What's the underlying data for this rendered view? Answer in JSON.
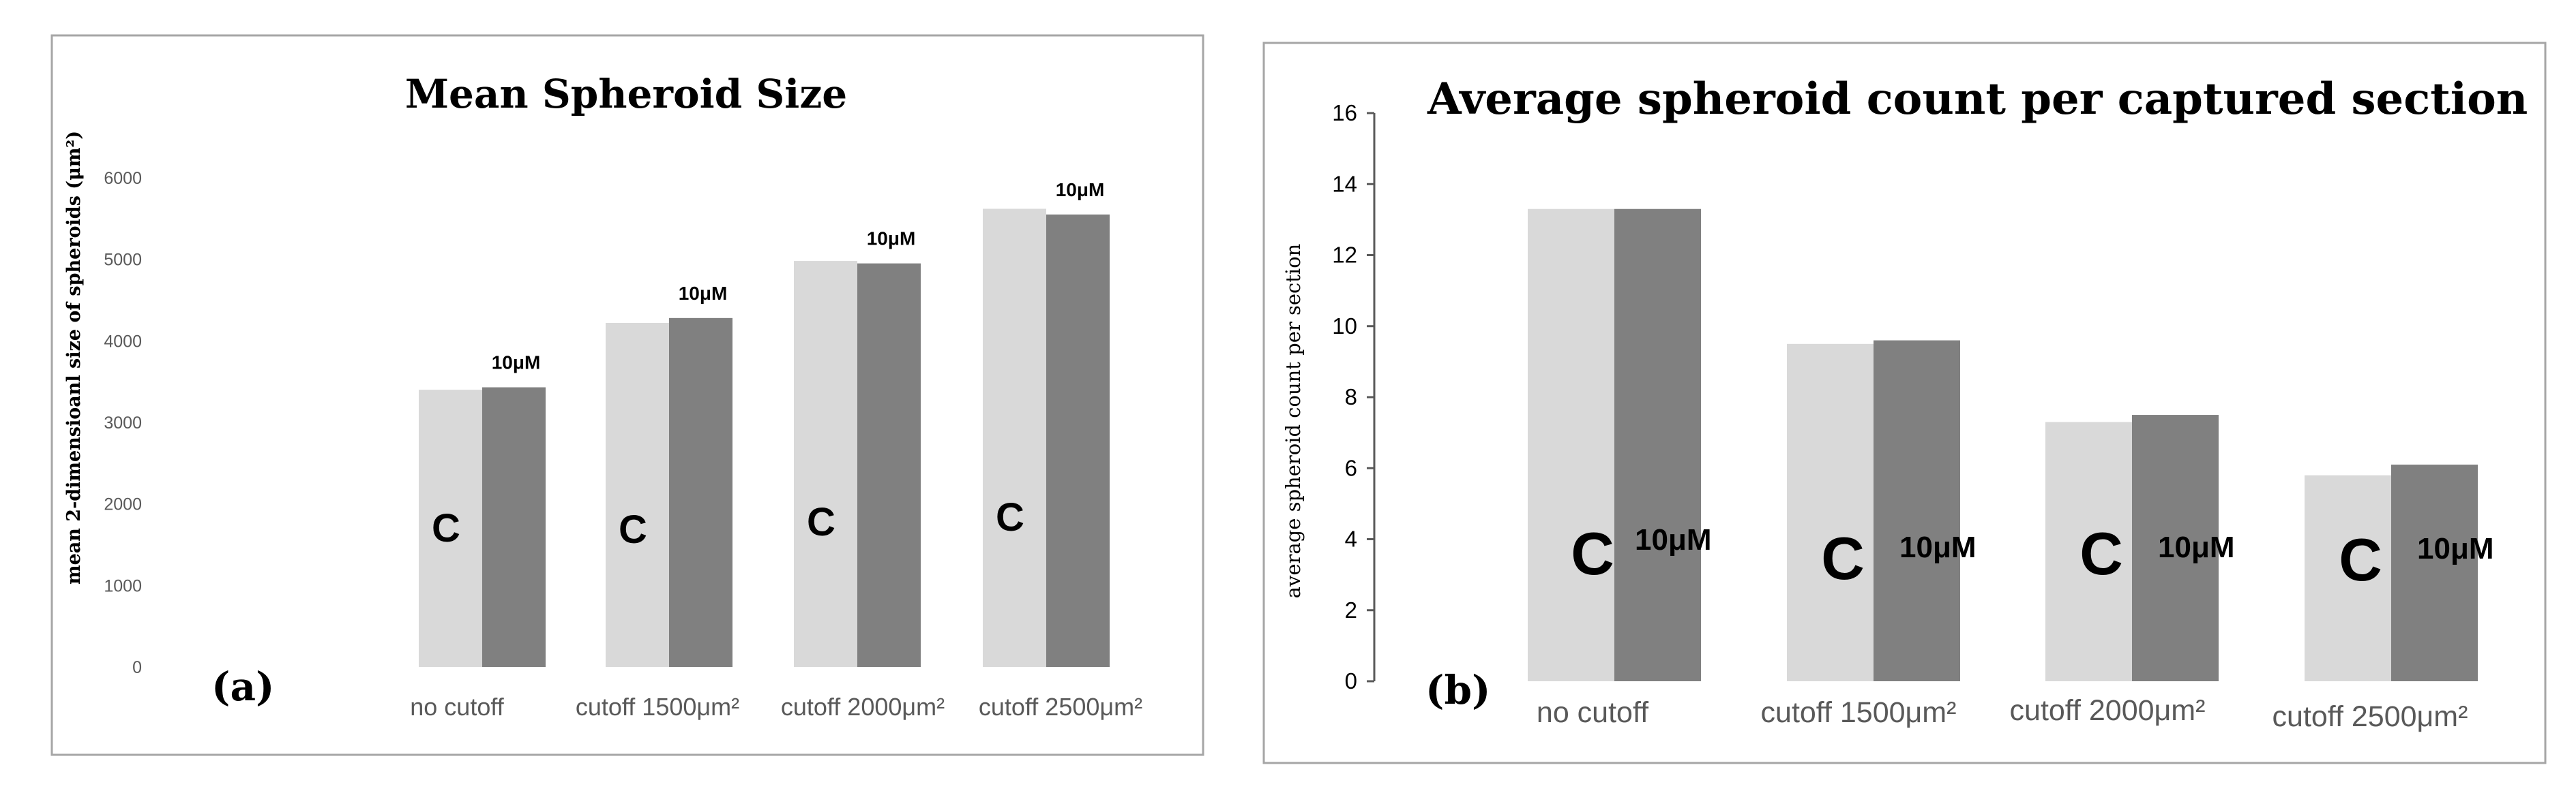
{
  "chart_data": [
    {
      "type": "bar",
      "panel_label": "(a)",
      "title": "Mean Spheroid Size",
      "ylabel": "mean 2-dimensioanl size of  spheroids (μm²)",
      "xlabel": "",
      "ylim": [
        0,
        6000
      ],
      "yticks": [
        "0",
        "1000",
        "2000",
        "3000",
        "4000",
        "5000",
        "6000"
      ],
      "categories": [
        "no cutoff",
        "cutoff 1500μm²",
        "cutoff 2000μm²",
        "cutoff 2500μm²"
      ],
      "series": [
        {
          "name": "C",
          "color": "#d9d9d9",
          "values": [
            3400,
            4220,
            4980,
            5620
          ]
        },
        {
          "name": "10μM",
          "color": "#808080",
          "values": [
            3430,
            4280,
            4950,
            5550
          ]
        }
      ],
      "grid": false,
      "legend": "in-bar labels"
    },
    {
      "type": "bar",
      "panel_label": "(b)",
      "title": "Average spheroid count per captured section",
      "ylabel": "average spheroid count per section",
      "xlabel": "",
      "ylim": [
        0,
        16
      ],
      "yticks": [
        "0",
        "2",
        "4",
        "6",
        "8",
        "10",
        "12",
        "14",
        "16"
      ],
      "categories": [
        "no cutoff",
        "cutoff 1500μm²",
        "cutoff 2000μm²",
        "cutoff 2500μm²"
      ],
      "series": [
        {
          "name": "C",
          "color": "#d9d9d9",
          "values": [
            13.3,
            9.5,
            7.3,
            5.8
          ]
        },
        {
          "name": "10μM",
          "color": "#808080",
          "values": [
            13.3,
            9.6,
            7.5,
            6.1
          ]
        }
      ],
      "grid": false,
      "legend": "in-bar labels"
    }
  ]
}
